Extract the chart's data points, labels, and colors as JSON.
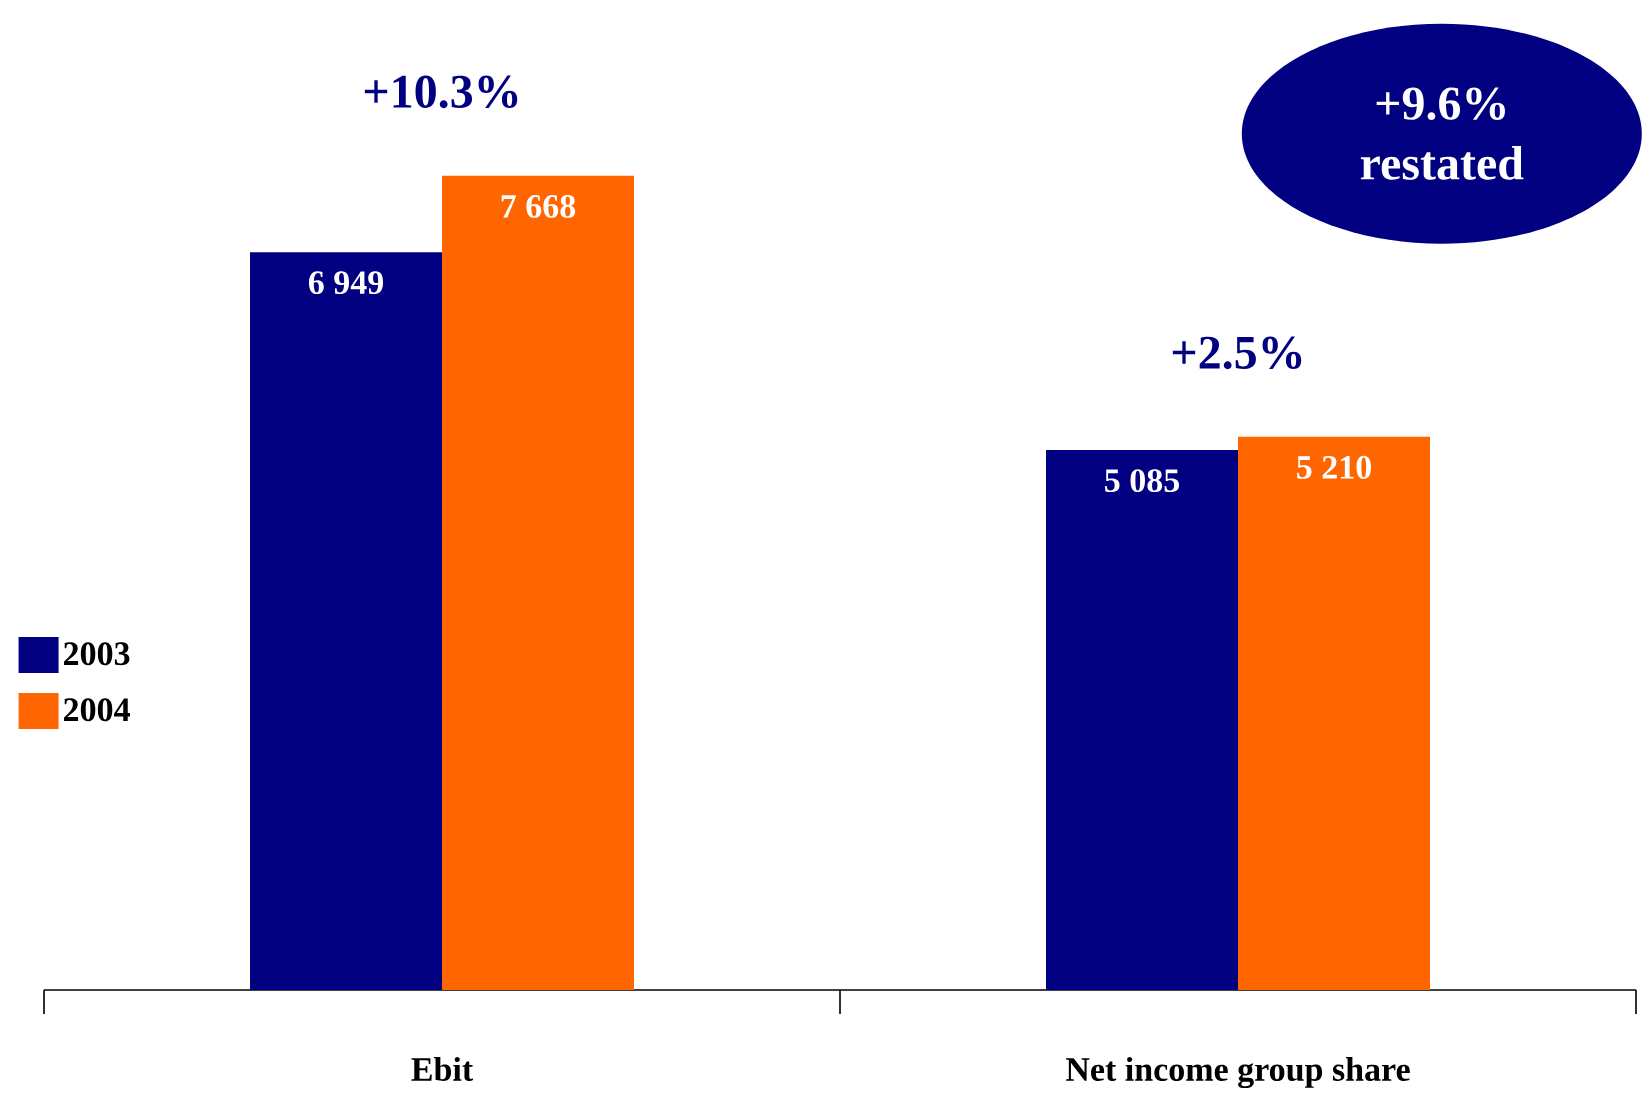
{
  "chart_data": {
    "type": "bar",
    "categories": [
      "Ebit",
      "Net income group share"
    ],
    "series": [
      {
        "name": "2003",
        "color": "#000080",
        "values": [
          6949,
          5085
        ],
        "value_labels": [
          "6 949",
          "5 085"
        ]
      },
      {
        "name": "2004",
        "color": "#ff6600",
        "values": [
          7668,
          5210
        ],
        "value_labels": [
          "7 668",
          "5 210"
        ]
      }
    ],
    "annotations": [
      "+10.3%",
      "+2.5%",
      "+9.6% restated"
    ],
    "legend": "left"
  }
}
